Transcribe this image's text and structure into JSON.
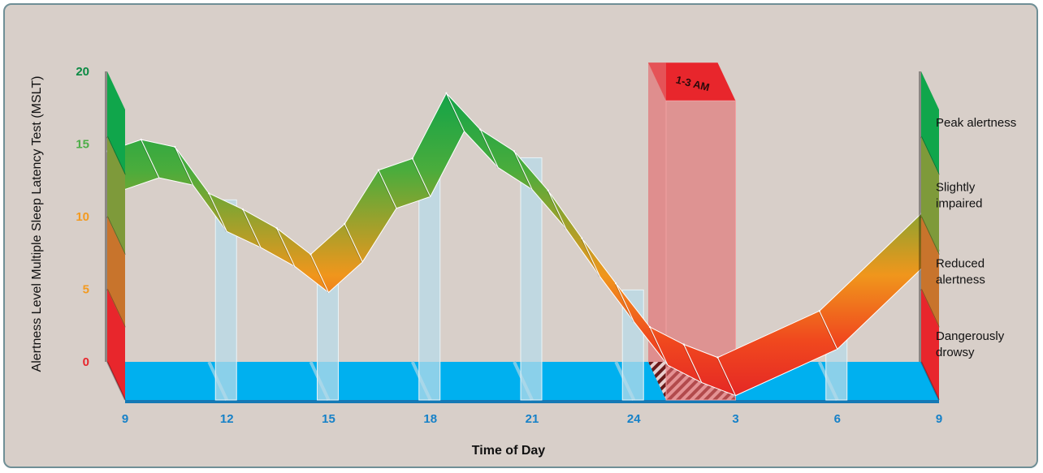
{
  "chart_data": {
    "type": "area",
    "xlabel": "Time of Day",
    "ylabel": "Alertness Level Multiple Sleep Latency Test (MSLT)",
    "x_ticks": [
      "9",
      "12",
      "15",
      "18",
      "21",
      "24",
      "3",
      "6",
      "9"
    ],
    "y_ticks": [
      {
        "label": "0",
        "value": 0,
        "color": "#e8262c"
      },
      {
        "label": "5",
        "value": 5,
        "color": "#f39a1f"
      },
      {
        "label": "10",
        "value": 10,
        "color": "#f39a1f"
      },
      {
        "label": "15",
        "value": 15,
        "color": "#4dae48"
      },
      {
        "label": "20",
        "value": 20,
        "color": "#0a8a43"
      }
    ],
    "ylim": [
      0,
      20
    ],
    "bands": [
      {
        "label": "Peak alertness",
        "range": [
          15.5,
          20
        ],
        "color": "#10a64b"
      },
      {
        "label": "Slightly impaired",
        "range": [
          10,
          15.5
        ],
        "color": "#7e9a3a"
      },
      {
        "label": "Reduced alertness",
        "range": [
          5,
          10
        ],
        "color": "#c8742c"
      },
      {
        "label": "Dangerously drowsy",
        "range": [
          0,
          5
        ],
        "color": "#e8262c"
      }
    ],
    "highlight": {
      "label": "1-3 AM",
      "x_range": [
        "1",
        "3"
      ],
      "color": "#e8262c"
    },
    "series": [
      {
        "x": [
          9,
          10,
          11,
          12,
          13,
          14,
          15,
          16,
          17,
          18,
          19,
          20,
          21,
          22,
          23,
          24,
          25,
          26,
          27,
          30,
          33
        ],
        "values": [
          14.5,
          15.3,
          14.8,
          11.6,
          10.5,
          9.2,
          7.4,
          9.5,
          13.2,
          14.0,
          18.5,
          16.0,
          14.5,
          11.8,
          8.5,
          5.4,
          2.4,
          1.2,
          0.3,
          3.5,
          10.2
        ]
      }
    ]
  }
}
